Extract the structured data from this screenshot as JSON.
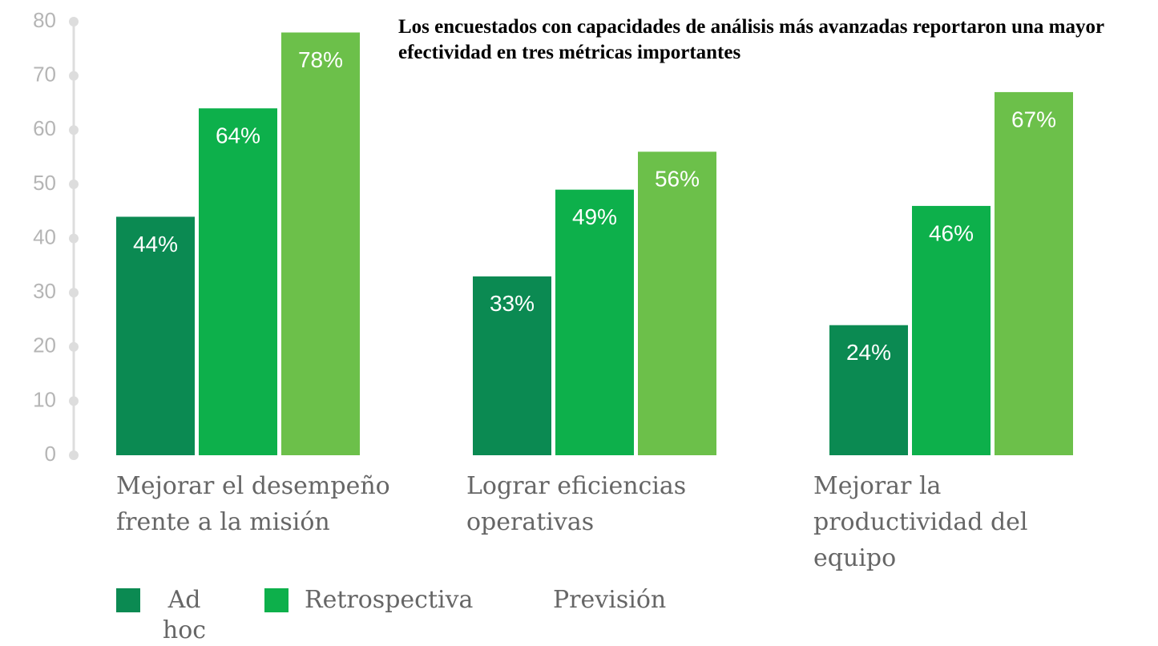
{
  "chart_data": {
    "type": "bar",
    "title": "Los encuestados con capacidades de análisis más avanzadas reportaron una mayor efectividad en tres métricas importantes",
    "categories": [
      "Mejorar el desempeño frente a la misión",
      "Lograr eficiencias operativas",
      "Mejorar la productividad del equipo"
    ],
    "series": [
      {
        "name": "Ad hoc",
        "color": "#0b8a52",
        "values": [
          44,
          33,
          24
        ],
        "value_labels": [
          "44%",
          "33%",
          "24%"
        ]
      },
      {
        "name": "Retrospectiva",
        "color": "#0db04b",
        "values": [
          64,
          49,
          46
        ],
        "value_labels": [
          "64%",
          "49%",
          "46%"
        ]
      },
      {
        "name": "Previsión",
        "color": "#6cc04a",
        "values": [
          78,
          56,
          67
        ],
        "value_labels": [
          "78%",
          "56%",
          "67%"
        ]
      }
    ],
    "ylim": [
      0,
      80
    ],
    "yticks": [
      0,
      10,
      20,
      30,
      40,
      50,
      60,
      70,
      80
    ],
    "grid": false
  }
}
